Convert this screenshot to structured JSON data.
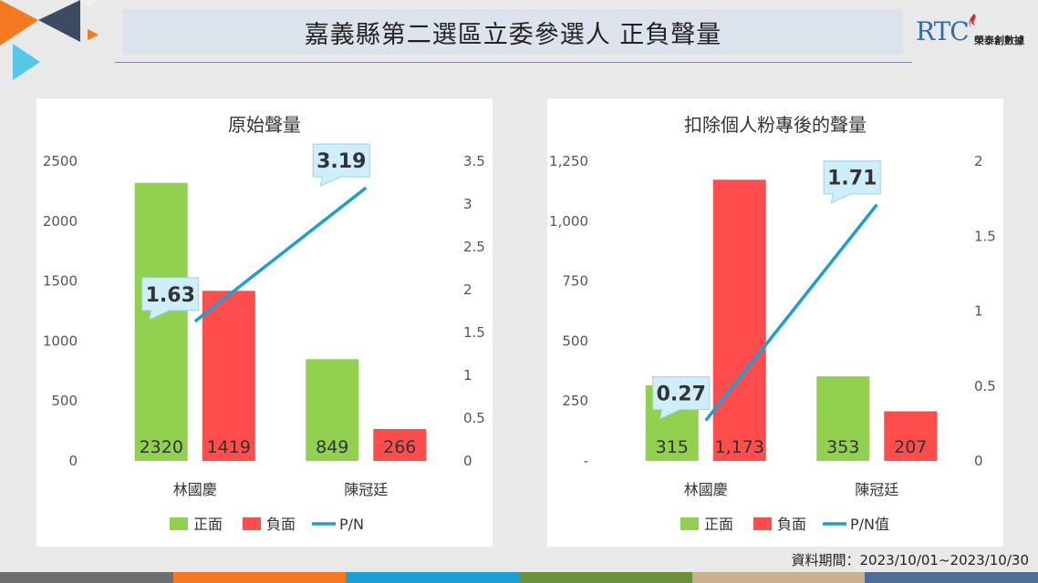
{
  "header": {
    "title": "嘉義縣第二選區立委參選人 正負聲量"
  },
  "logo": {
    "mark": "RTC",
    "name": "榮泰創數據"
  },
  "source_note": "資料期間：2023/10/01~2023/10/30",
  "colors": {
    "positive": "#92d050",
    "negative": "#ff4d4d",
    "ratio_line": "#1a9fd6",
    "label_box": "#cfeefb",
    "bottom_bar": [
      "#6d6e71",
      "#f47920",
      "#1a9fd6",
      "#6c8f3a",
      "#c9b28b",
      "#4e6e97"
    ]
  },
  "chart_data": [
    {
      "type": "bar",
      "title": "原始聲量",
      "categories": [
        "林國慶",
        "陳冠廷"
      ],
      "series": [
        {
          "name": "正面",
          "values": [
            2320,
            849
          ],
          "labels": [
            "2320",
            "849"
          ]
        },
        {
          "name": "負面",
          "values": [
            1419,
            266
          ],
          "labels": [
            "1419",
            "266"
          ]
        }
      ],
      "line_series": {
        "name": "P/N",
        "values": [
          1.63,
          3.19
        ],
        "labels": [
          "1.63",
          "3.19"
        ]
      },
      "y_left": {
        "min": 0,
        "max": 2500,
        "ticks": [
          0,
          500,
          1000,
          1500,
          2000,
          2500
        ],
        "tick_labels": [
          "0",
          "500",
          "1000",
          "1500",
          "2000",
          "2500"
        ]
      },
      "y_right": {
        "min": 0,
        "max": 3.5,
        "ticks": [
          0,
          0.5,
          1,
          1.5,
          2,
          2.5,
          3,
          3.5
        ],
        "tick_labels": [
          "0",
          "0.5",
          "1",
          "1.5",
          "2",
          "2.5",
          "3",
          "3.5"
        ]
      },
      "legend": "bottom",
      "grid": false
    },
    {
      "type": "bar",
      "title": "扣除個人粉專後的聲量",
      "categories": [
        "林國慶",
        "陳冠廷"
      ],
      "series": [
        {
          "name": "正面",
          "values": [
            315,
            353
          ],
          "labels": [
            "315",
            "353"
          ]
        },
        {
          "name": "負面",
          "values": [
            1173,
            207
          ],
          "labels": [
            "1,173",
            "207"
          ]
        }
      ],
      "line_series": {
        "name": "P/N值",
        "values": [
          0.27,
          1.71
        ],
        "labels": [
          "0.27",
          "1.71"
        ]
      },
      "y_left": {
        "min": 0,
        "max": 1250,
        "ticks": [
          0,
          250,
          500,
          750,
          1000,
          1250
        ],
        "tick_labels": [
          "-",
          "250",
          "500",
          "750",
          "1,000",
          "1,250"
        ]
      },
      "y_right": {
        "min": 0,
        "max": 2,
        "ticks": [
          0,
          0.5,
          1,
          1.5,
          2
        ],
        "tick_labels": [
          "0",
          "0.5",
          "1",
          "1.5",
          "2"
        ]
      },
      "legend": "bottom",
      "grid": false
    }
  ]
}
